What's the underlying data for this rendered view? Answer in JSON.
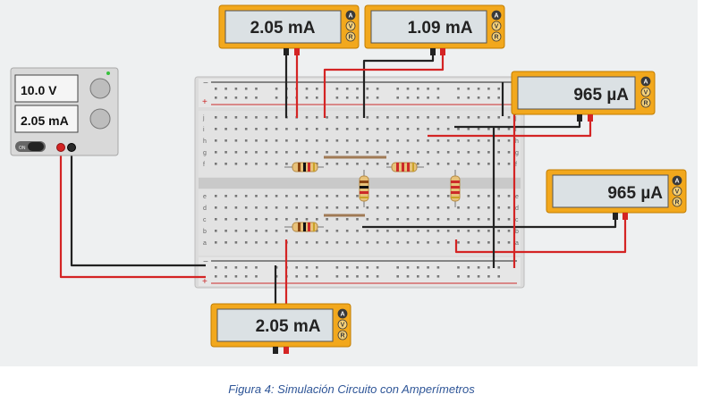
{
  "power_supply": {
    "voltage": "10.0 V",
    "current": "2.05 mA",
    "on_label": "ON"
  },
  "meters": {
    "top_left": {
      "reading": "2.05 mA"
    },
    "top_right": {
      "reading": "1.09 mA"
    },
    "right_upper": {
      "reading": "965 µA"
    },
    "right_lower": {
      "reading": "965 µA"
    },
    "bottom": {
      "reading": "2.05 mA"
    }
  },
  "meter_modes": [
    "A",
    "V",
    "R"
  ],
  "breadboard": {
    "rail_minus": "−",
    "rail_plus": "+",
    "row_letters_top": [
      "j",
      "i",
      "h",
      "g",
      "f"
    ],
    "row_letters_bottom": [
      "e",
      "d",
      "c",
      "b",
      "a"
    ]
  },
  "caption": "Figura 4: Simulación Circuito con Amperímetros"
}
